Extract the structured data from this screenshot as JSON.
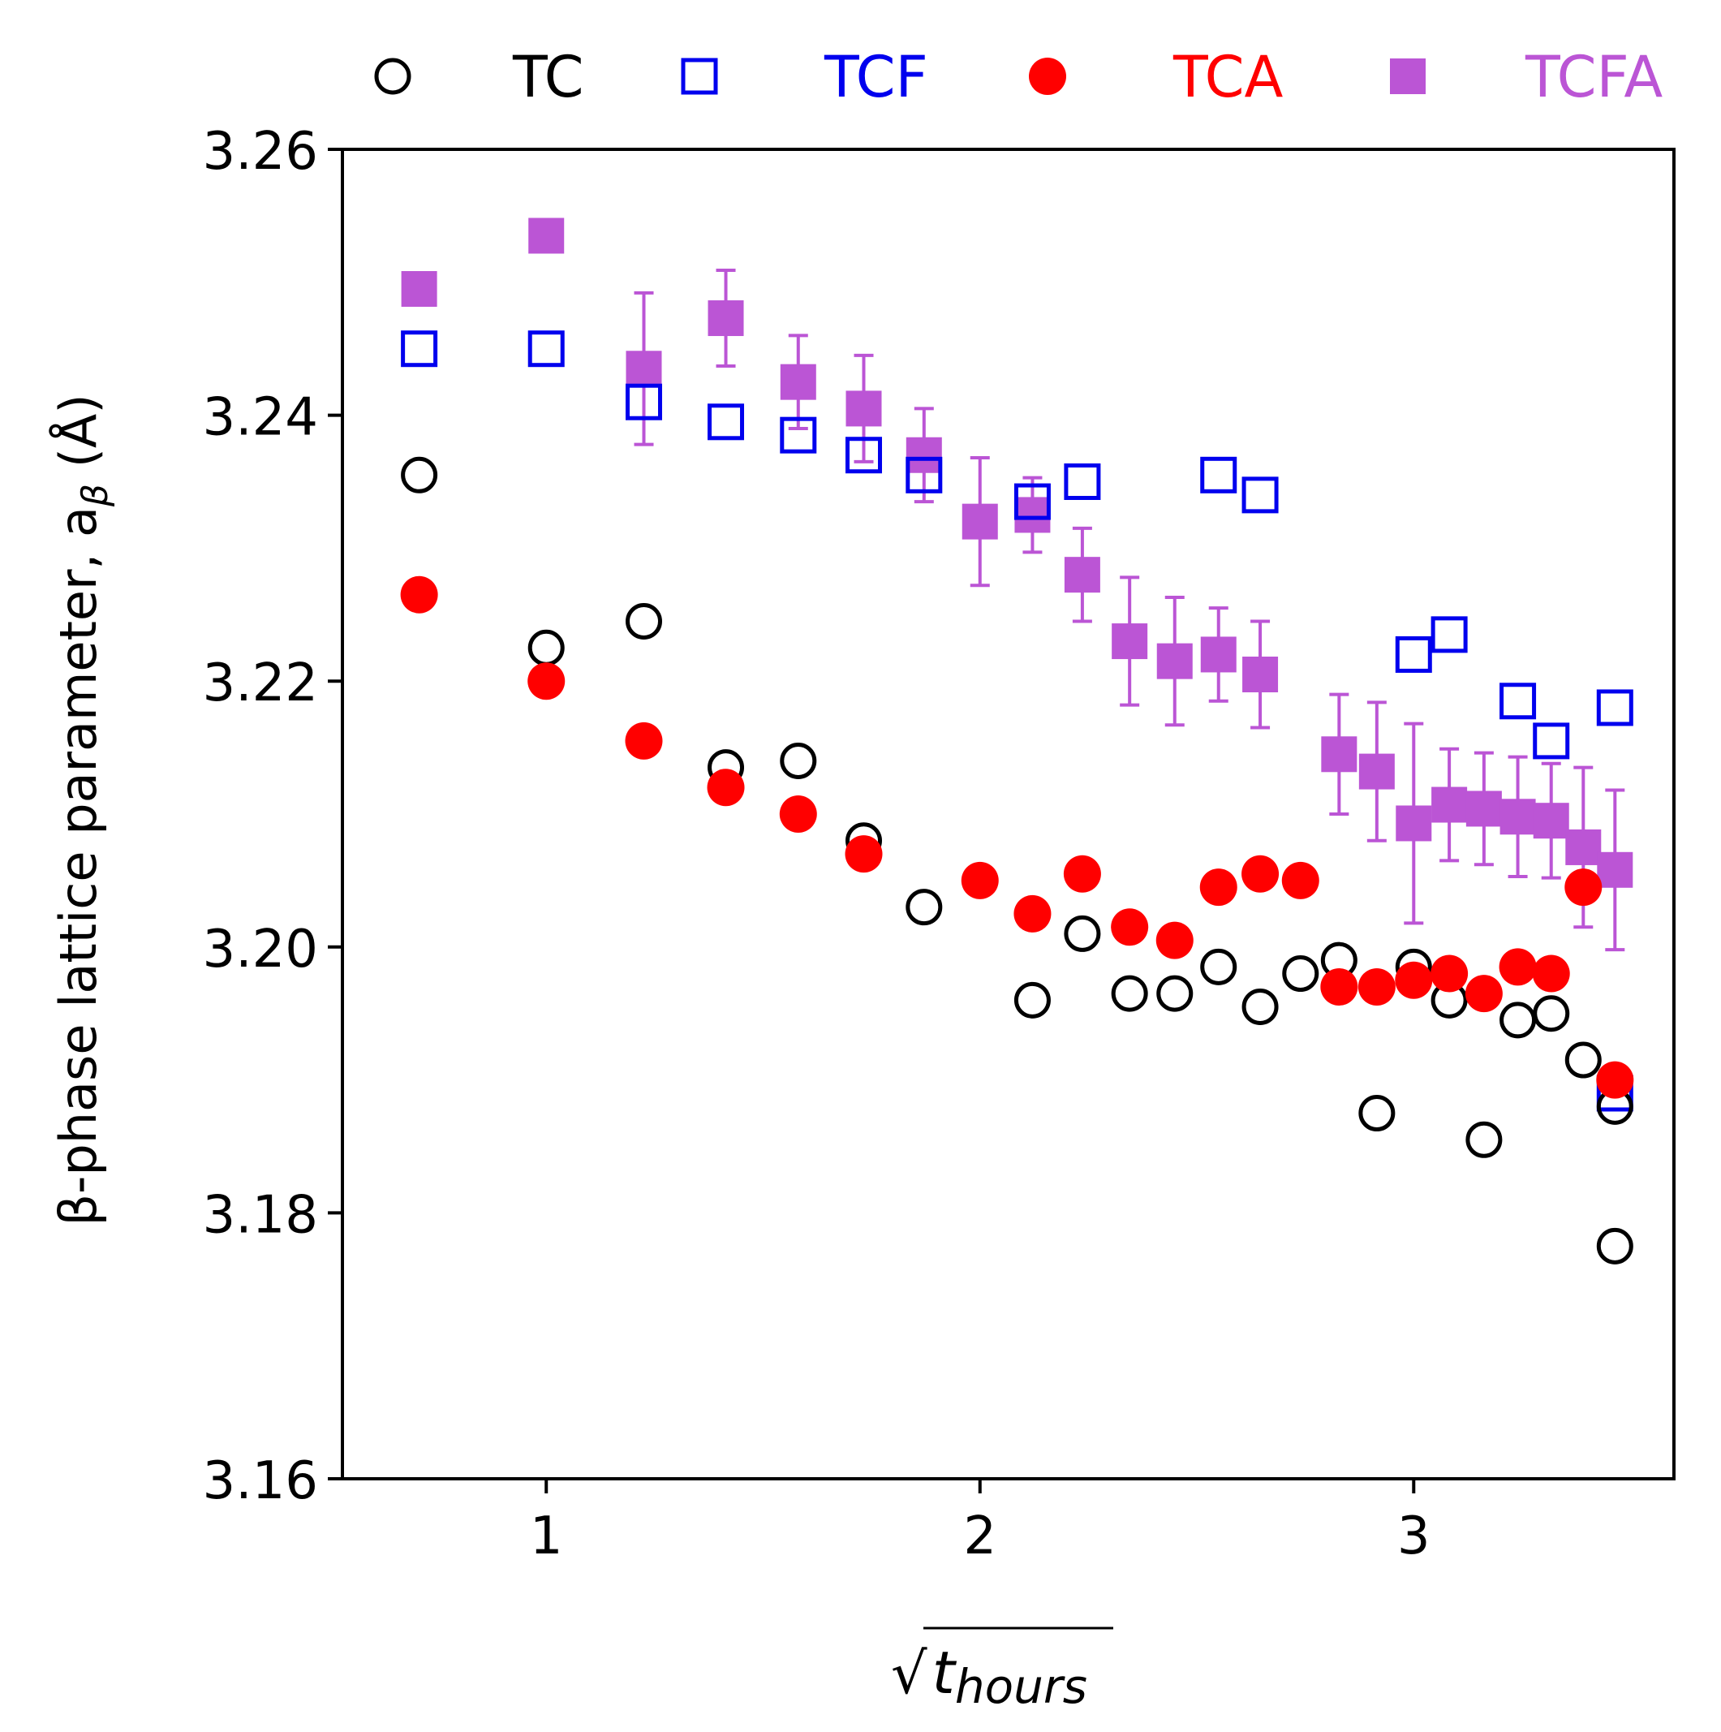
{
  "chart_data": {
    "type": "scatter",
    "title": "",
    "xlabel": "√t_hours",
    "xlabel_parts": {
      "radical": "√",
      "base": "t",
      "subscript": "hours"
    },
    "ylabel": "β-phase lattice parameter, a_β (Å)",
    "ylabel_parts": {
      "prefix": "β-phase lattice parameter, a",
      "subscript": "β",
      "suffix": " (Å)"
    },
    "xlim": [
      0.53,
      3.6
    ],
    "ylim": [
      3.16,
      3.26
    ],
    "xticks": [
      1,
      2,
      3
    ],
    "xtick_labels": [
      "1",
      "2",
      "3"
    ],
    "yticks": [
      3.16,
      3.18,
      3.2,
      3.22,
      3.24,
      3.26
    ],
    "ytick_labels": [
      "3.16",
      "3.18",
      "3.20",
      "3.22",
      "3.24",
      "3.26"
    ],
    "grid": false,
    "legend_position": "top",
    "series": [
      {
        "name": "TC",
        "color": "#000000",
        "marker": "open-circle",
        "points": [
          [
            0.707,
            3.2355
          ],
          [
            1.0,
            3.2225
          ],
          [
            1.225,
            3.2245
          ],
          [
            1.414,
            3.2135
          ],
          [
            1.581,
            3.214
          ],
          [
            1.732,
            3.208
          ],
          [
            1.871,
            3.203
          ],
          [
            2.121,
            3.196
          ],
          [
            2.236,
            3.201
          ],
          [
            2.345,
            3.1965
          ],
          [
            2.449,
            3.1965
          ],
          [
            2.55,
            3.1985
          ],
          [
            2.646,
            3.1955
          ],
          [
            2.739,
            3.198
          ],
          [
            2.828,
            3.199
          ],
          [
            2.915,
            3.1875
          ],
          [
            3.0,
            3.1985
          ],
          [
            3.082,
            3.196
          ],
          [
            3.162,
            3.1855
          ],
          [
            3.24,
            3.1945
          ],
          [
            3.317,
            3.195
          ],
          [
            3.391,
            3.1915
          ],
          [
            3.464,
            3.188
          ],
          [
            3.464,
            3.1775
          ]
        ]
      },
      {
        "name": "TCF",
        "color": "#0000ee",
        "marker": "open-square",
        "points": [
          [
            0.707,
            3.245
          ],
          [
            1.0,
            3.245
          ],
          [
            1.225,
            3.241
          ],
          [
            1.414,
            3.2395
          ],
          [
            1.581,
            3.2385
          ],
          [
            1.732,
            3.237
          ],
          [
            1.871,
            3.2355
          ],
          [
            2.121,
            3.2335
          ],
          [
            2.236,
            3.235
          ],
          [
            2.55,
            3.2355
          ],
          [
            2.646,
            3.234
          ],
          [
            3.0,
            3.222
          ],
          [
            3.082,
            3.2235
          ],
          [
            3.24,
            3.2185
          ],
          [
            3.317,
            3.2155
          ],
          [
            3.464,
            3.218
          ],
          [
            3.464,
            3.189
          ]
        ]
      },
      {
        "name": "TCA",
        "color": "#ff0000",
        "marker": "filled-circle",
        "points": [
          [
            0.707,
            3.2265
          ],
          [
            1.0,
            3.22
          ],
          [
            1.225,
            3.2155
          ],
          [
            1.414,
            3.212
          ],
          [
            1.581,
            3.21
          ],
          [
            1.732,
            3.207
          ],
          [
            2.0,
            3.205
          ],
          [
            2.121,
            3.2025
          ],
          [
            2.236,
            3.2055
          ],
          [
            2.345,
            3.2015
          ],
          [
            2.449,
            3.2005
          ],
          [
            2.55,
            3.2045
          ],
          [
            2.646,
            3.2055
          ],
          [
            2.739,
            3.205
          ],
          [
            2.828,
            3.197
          ],
          [
            2.915,
            3.197
          ],
          [
            3.0,
            3.1975
          ],
          [
            3.082,
            3.198
          ],
          [
            3.162,
            3.1965
          ],
          [
            3.24,
            3.1985
          ],
          [
            3.317,
            3.198
          ],
          [
            3.391,
            3.2045
          ],
          [
            3.464,
            3.19
          ]
        ]
      },
      {
        "name": "TCFA",
        "color": "#bb55d5",
        "marker": "filled-square",
        "points": [
          [
            0.707,
            3.2495,
            0
          ],
          [
            1.0,
            3.2535,
            0
          ],
          [
            1.225,
            3.2435,
            0.0057
          ],
          [
            1.414,
            3.2473,
            0.0036
          ],
          [
            1.581,
            3.2425,
            0.0035
          ],
          [
            1.732,
            3.2405,
            0.004
          ],
          [
            1.871,
            3.237,
            0.0035
          ],
          [
            2.0,
            3.232,
            0.0048
          ],
          [
            2.121,
            3.2325,
            0.0028
          ],
          [
            2.236,
            3.228,
            0.0035
          ],
          [
            2.345,
            3.223,
            0.0048
          ],
          [
            2.449,
            3.2215,
            0.0048
          ],
          [
            2.55,
            3.222,
            0.0035
          ],
          [
            2.646,
            3.2205,
            0.004
          ],
          [
            2.828,
            3.2145,
            0.0045
          ],
          [
            2.915,
            3.2132,
            0.0052
          ],
          [
            3.0,
            3.2093,
            0.0075
          ],
          [
            3.082,
            3.2107,
            0.0042
          ],
          [
            3.162,
            3.2104,
            0.0042
          ],
          [
            3.24,
            3.2098,
            0.0045
          ],
          [
            3.317,
            3.2095,
            0.0043
          ],
          [
            3.391,
            3.2075,
            0.006
          ],
          [
            3.464,
            3.2058,
            0.006
          ]
        ]
      }
    ]
  }
}
